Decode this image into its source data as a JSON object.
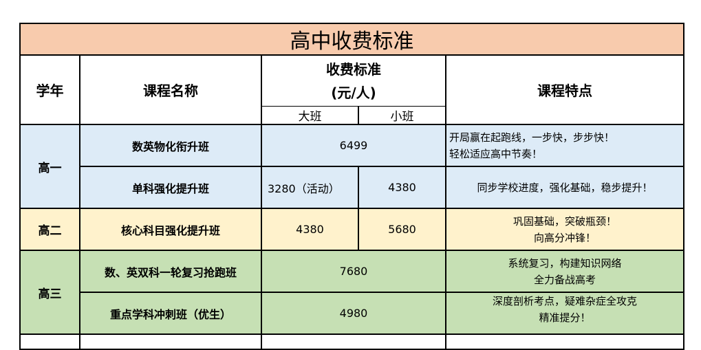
{
  "title": "高中收费标准",
  "headers": {
    "year": "学年",
    "course": "课程名称",
    "fee_line1": "收费标准",
    "fee_line2": "(元/人)",
    "big_class": "大班",
    "small_class": "小班",
    "features": "课程特点"
  },
  "colors": {
    "title_bg": "#f8cbad",
    "grade1": "#ddebf7",
    "grade2": "#fff2cc",
    "grade3": "#c6e0b4"
  },
  "rows": [
    {
      "grade": "高一",
      "course": "数英物化衔升班",
      "price": "6499",
      "features": [
        "开局赢在起跑线，一步快，步步快！",
        "轻松适应高中节奏！"
      ]
    },
    {
      "course": "单科强化提升班",
      "big": "3280（活动）",
      "small": "4380",
      "features": [
        "同步学校进度，强化基础，稳步提升！"
      ]
    },
    {
      "grade": "高二",
      "course": "核心科目强化提升班",
      "big": "4380",
      "small": "5680",
      "features": [
        "巩固基础，突破瓶颈！",
        "向高分冲锋！"
      ]
    },
    {
      "grade": "高三",
      "course": "数、英双科一轮复习抢跑班",
      "price": "7680",
      "features": [
        "系统复习，构建知识网络",
        "全力备战高考"
      ]
    },
    {
      "course": "重点学科冲刺班（优生）",
      "price": "4980",
      "features": [
        "深度剖析考点，疑难杂症全攻克",
        "精准提分！"
      ]
    }
  ]
}
